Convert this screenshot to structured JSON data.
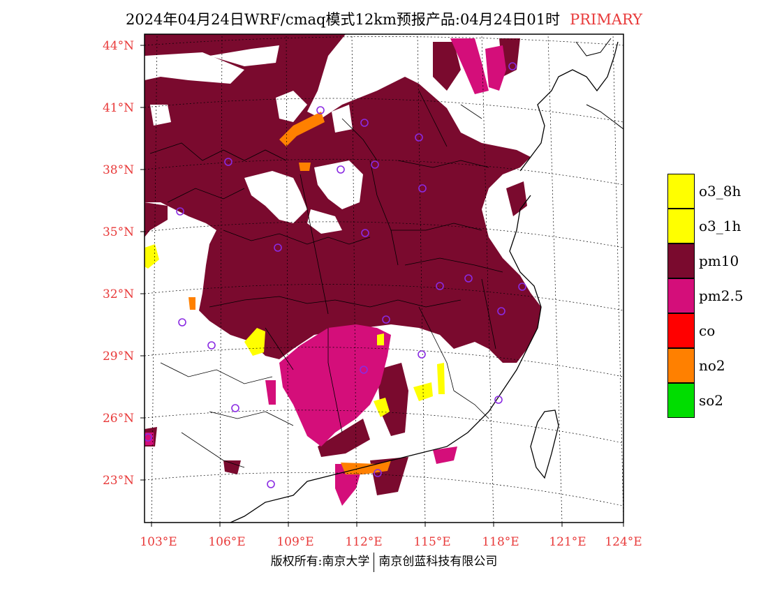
{
  "header": {
    "title": "2024年04月24日WRF/cmaq模式12km预报产品:04月24日01时",
    "tag": "PRIMARY"
  },
  "map": {
    "lat_labels": [
      "44°N",
      "41°N",
      "38°N",
      "35°N",
      "32°N",
      "29°N",
      "26°N",
      "23°N"
    ],
    "lon_labels": [
      "103°E",
      "106°E",
      "109°E",
      "112°E",
      "115°E",
      "118°E",
      "121°E",
      "124°E"
    ]
  },
  "legend": {
    "items": [
      {
        "label": "o3_8h",
        "color": "#ffff00"
      },
      {
        "label": "o3_1h",
        "color": "#ffff00"
      },
      {
        "label": "pm10",
        "color": "#7a0a2e"
      },
      {
        "label": "pm2.5",
        "color": "#d40e7a"
      },
      {
        "label": "co",
        "color": "#ff0000"
      },
      {
        "label": "no2",
        "color": "#ff8000"
      },
      {
        "label": "so2",
        "color": "#00dd00"
      }
    ]
  },
  "credit": {
    "left": "版权所有:南京大学",
    "right": "南京创蓝科技有限公司"
  },
  "colors": {
    "pm10": "#7a0a2e",
    "pm25": "#d40e7a",
    "no2": "#ff8000",
    "o3": "#ffff00",
    "station": "#8a2be2",
    "axis_text": "#e83a3a"
  }
}
